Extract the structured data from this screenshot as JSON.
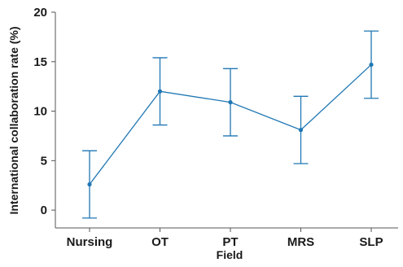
{
  "chart_data": {
    "type": "line",
    "title": "",
    "xlabel": "Field",
    "ylabel": "International collaboration rate (%)",
    "categories": [
      "Nursing",
      "OT",
      "PT",
      "MRS",
      "SLP"
    ],
    "series": [
      {
        "values": [
          2.6,
          12.0,
          10.9,
          8.1,
          14.7
        ],
        "error_low": [
          -0.8,
          8.6,
          7.5,
          4.7,
          11.3
        ],
        "error_high": [
          6.0,
          15.4,
          14.3,
          11.5,
          18.1
        ]
      }
    ],
    "ylim": [
      -1.8,
      20
    ],
    "yticks": [
      0,
      5,
      10,
      15,
      20
    ],
    "grid": false,
    "colors": {
      "series": "#1f77b4",
      "axis": "#555555",
      "text": "#1a1a1a"
    }
  }
}
